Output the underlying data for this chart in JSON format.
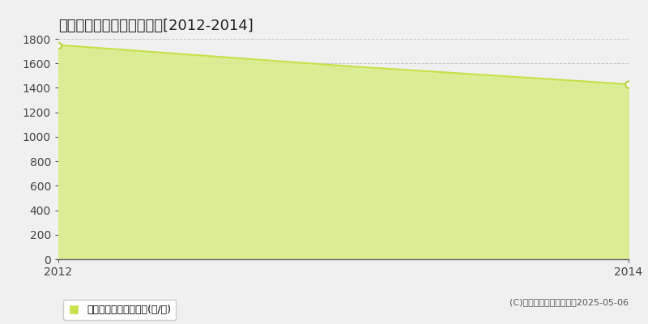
{
  "title": "桜川市木植　農地価格推移[2012-2014]",
  "x": [
    2012,
    2013,
    2014
  ],
  "y": [
    1750,
    1580,
    1430
  ],
  "line_color": "#c8e04b",
  "fill_color": "#d9ed8a",
  "fill_alpha": 0.9,
  "marker_edge_color": "#b8d040",
  "background_color": "#f0f0f0",
  "plot_bg_color": "#f0f0f0",
  "grid_color": "#aaaaaa",
  "ylim": [
    0,
    1800
  ],
  "yticks": [
    0,
    200,
    400,
    600,
    800,
    1000,
    1200,
    1400,
    1600,
    1800
  ],
  "xlim": [
    2012,
    2014
  ],
  "xticks": [
    2012,
    2014
  ],
  "legend_label": "農地価格　平均坪単価(円/坪)",
  "legend_marker_color": "#c8e04b",
  "copyright_text": "(C)土地価格ドットコム　2025-05-06",
  "title_fontsize": 13,
  "tick_fontsize": 10,
  "legend_fontsize": 9,
  "copyright_fontsize": 8
}
